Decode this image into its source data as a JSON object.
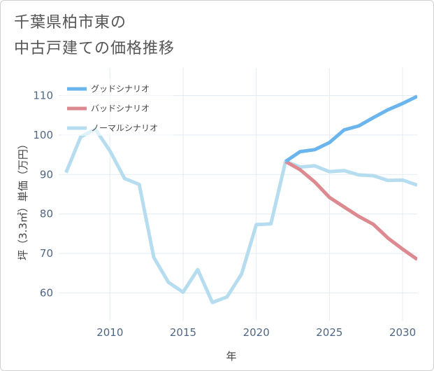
{
  "title": {
    "line1": "千葉県柏市東の",
    "line2": "中古戸建ての価格推移"
  },
  "chart_data": {
    "type": "line",
    "xlabel": "年",
    "ylabel": "坪（3.3㎡）単価（万円）",
    "xlim": [
      2006.5,
      2031
    ],
    "ylim": [
      53,
      117
    ],
    "xticks": [
      2010,
      2015,
      2020,
      2025,
      2030
    ],
    "yticks": [
      60,
      70,
      80,
      90,
      100,
      110
    ],
    "legend_position": "top-left",
    "series": [
      {
        "name": "グッドシナリオ",
        "color": "#6bb5ee",
        "x": [
          2022,
          2023,
          2024,
          2025,
          2026,
          2027,
          2028,
          2029,
          2030,
          2031
        ],
        "y": [
          93.3,
          95.8,
          96.3,
          98.1,
          101.3,
          102.3,
          104.4,
          106.4,
          108.0,
          109.8
        ]
      },
      {
        "name": "バッドシナリオ",
        "color": "#dc8a8f",
        "x": [
          2022,
          2023,
          2024,
          2025,
          2026,
          2027,
          2028,
          2029,
          2030,
          2031
        ],
        "y": [
          93.3,
          91.2,
          88.1,
          84.2,
          81.8,
          79.4,
          77.4,
          73.9,
          71.1,
          68.5
        ]
      },
      {
        "name": "ノーマルシナリオ",
        "color": "#b6ddef",
        "x": [
          2007,
          2008,
          2009,
          2010,
          2011,
          2012,
          2013,
          2014,
          2015,
          2016,
          2017,
          2018,
          2019,
          2020,
          2021,
          2022,
          2023,
          2024,
          2025,
          2026,
          2027,
          2028,
          2029,
          2030,
          2031
        ],
        "y": [
          90.5,
          99.5,
          101.5,
          96.0,
          89.0,
          87.5,
          69.0,
          62.7,
          60.2,
          65.9,
          57.6,
          59.0,
          64.8,
          77.3,
          77.5,
          93.3,
          91.9,
          92.2,
          90.7,
          91.0,
          89.9,
          89.7,
          88.5,
          88.6,
          87.3
        ]
      }
    ]
  }
}
